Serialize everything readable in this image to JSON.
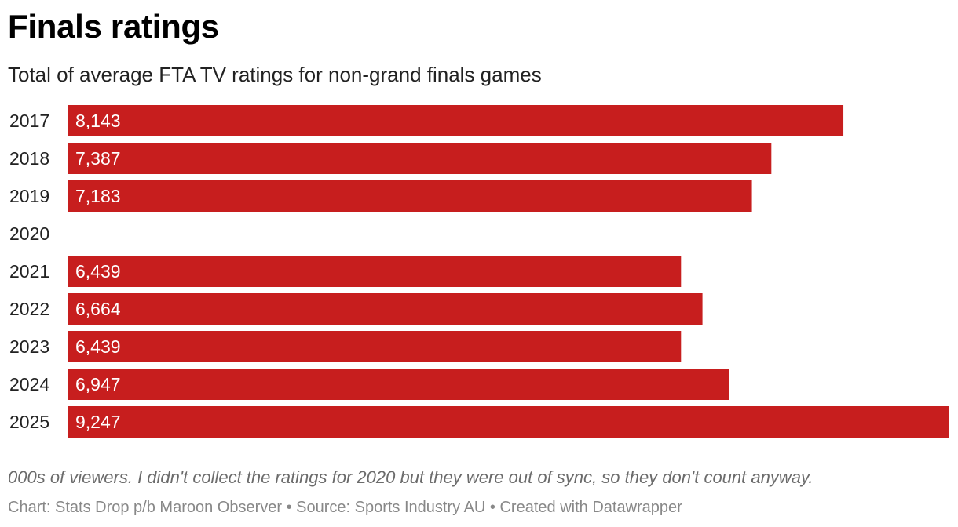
{
  "header": {
    "title": "Finals ratings",
    "subtitle": "Total of average FTA TV ratings for non-grand finals games"
  },
  "footer": {
    "note": "000s of viewers. I didn't collect the ratings for 2020 but they were out of sync, so they don't count anyway.",
    "credits": "Chart: Stats Drop p/b Maroon Observer • Source: Sports Industry AU • Created with Datawrapper"
  },
  "colors": {
    "bar": "#c71e1e"
  },
  "chart_data": {
    "type": "bar",
    "orientation": "horizontal",
    "title": "Finals ratings",
    "subtitle": "Total of average FTA TV ratings for non-grand finals games",
    "categories": [
      "2017",
      "2018",
      "2019",
      "2020",
      "2021",
      "2022",
      "2023",
      "2024",
      "2025"
    ],
    "values": [
      8143,
      7387,
      7183,
      null,
      6439,
      6664,
      6439,
      6947,
      9247
    ],
    "value_labels": [
      "8,143",
      "7,387",
      "7,183",
      "",
      "6,439",
      "6,664",
      "6,439",
      "6,947",
      "9,247"
    ],
    "xlim": [
      0,
      9247
    ],
    "grid": false,
    "legend": "none",
    "data_labels": "inside-left"
  }
}
